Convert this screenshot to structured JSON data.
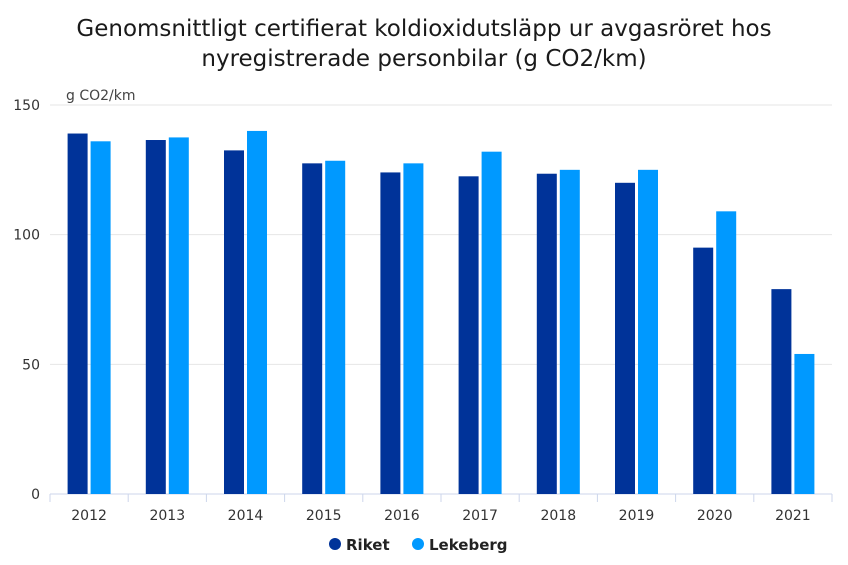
{
  "chart_data": {
    "type": "bar",
    "title_line1": "Genomsnittligt certifierat koldioxidutsläpp ur avgasröret hos",
    "title_line2": "nyregistrerade personbilar (g CO2/km)",
    "unit_label": "g CO2/km",
    "xlabel": "",
    "ylabel": "",
    "ylim": [
      0,
      150
    ],
    "yticks": [
      0,
      50,
      100,
      150
    ],
    "grid": true,
    "legend_position": "bottom-center",
    "categories": [
      "2012",
      "2013",
      "2014",
      "2015",
      "2016",
      "2017",
      "2018",
      "2019",
      "2020",
      "2021"
    ],
    "series": [
      {
        "name": "Riket",
        "color": "#003399",
        "values": [
          139,
          136.5,
          132.5,
          127.5,
          124,
          122.5,
          123.5,
          120,
          95,
          79
        ]
      },
      {
        "name": "Lekeberg",
        "color": "#0099ff",
        "values": [
          136,
          137.5,
          140,
          128.5,
          127.5,
          132,
          125,
          125,
          109,
          54
        ]
      }
    ]
  }
}
